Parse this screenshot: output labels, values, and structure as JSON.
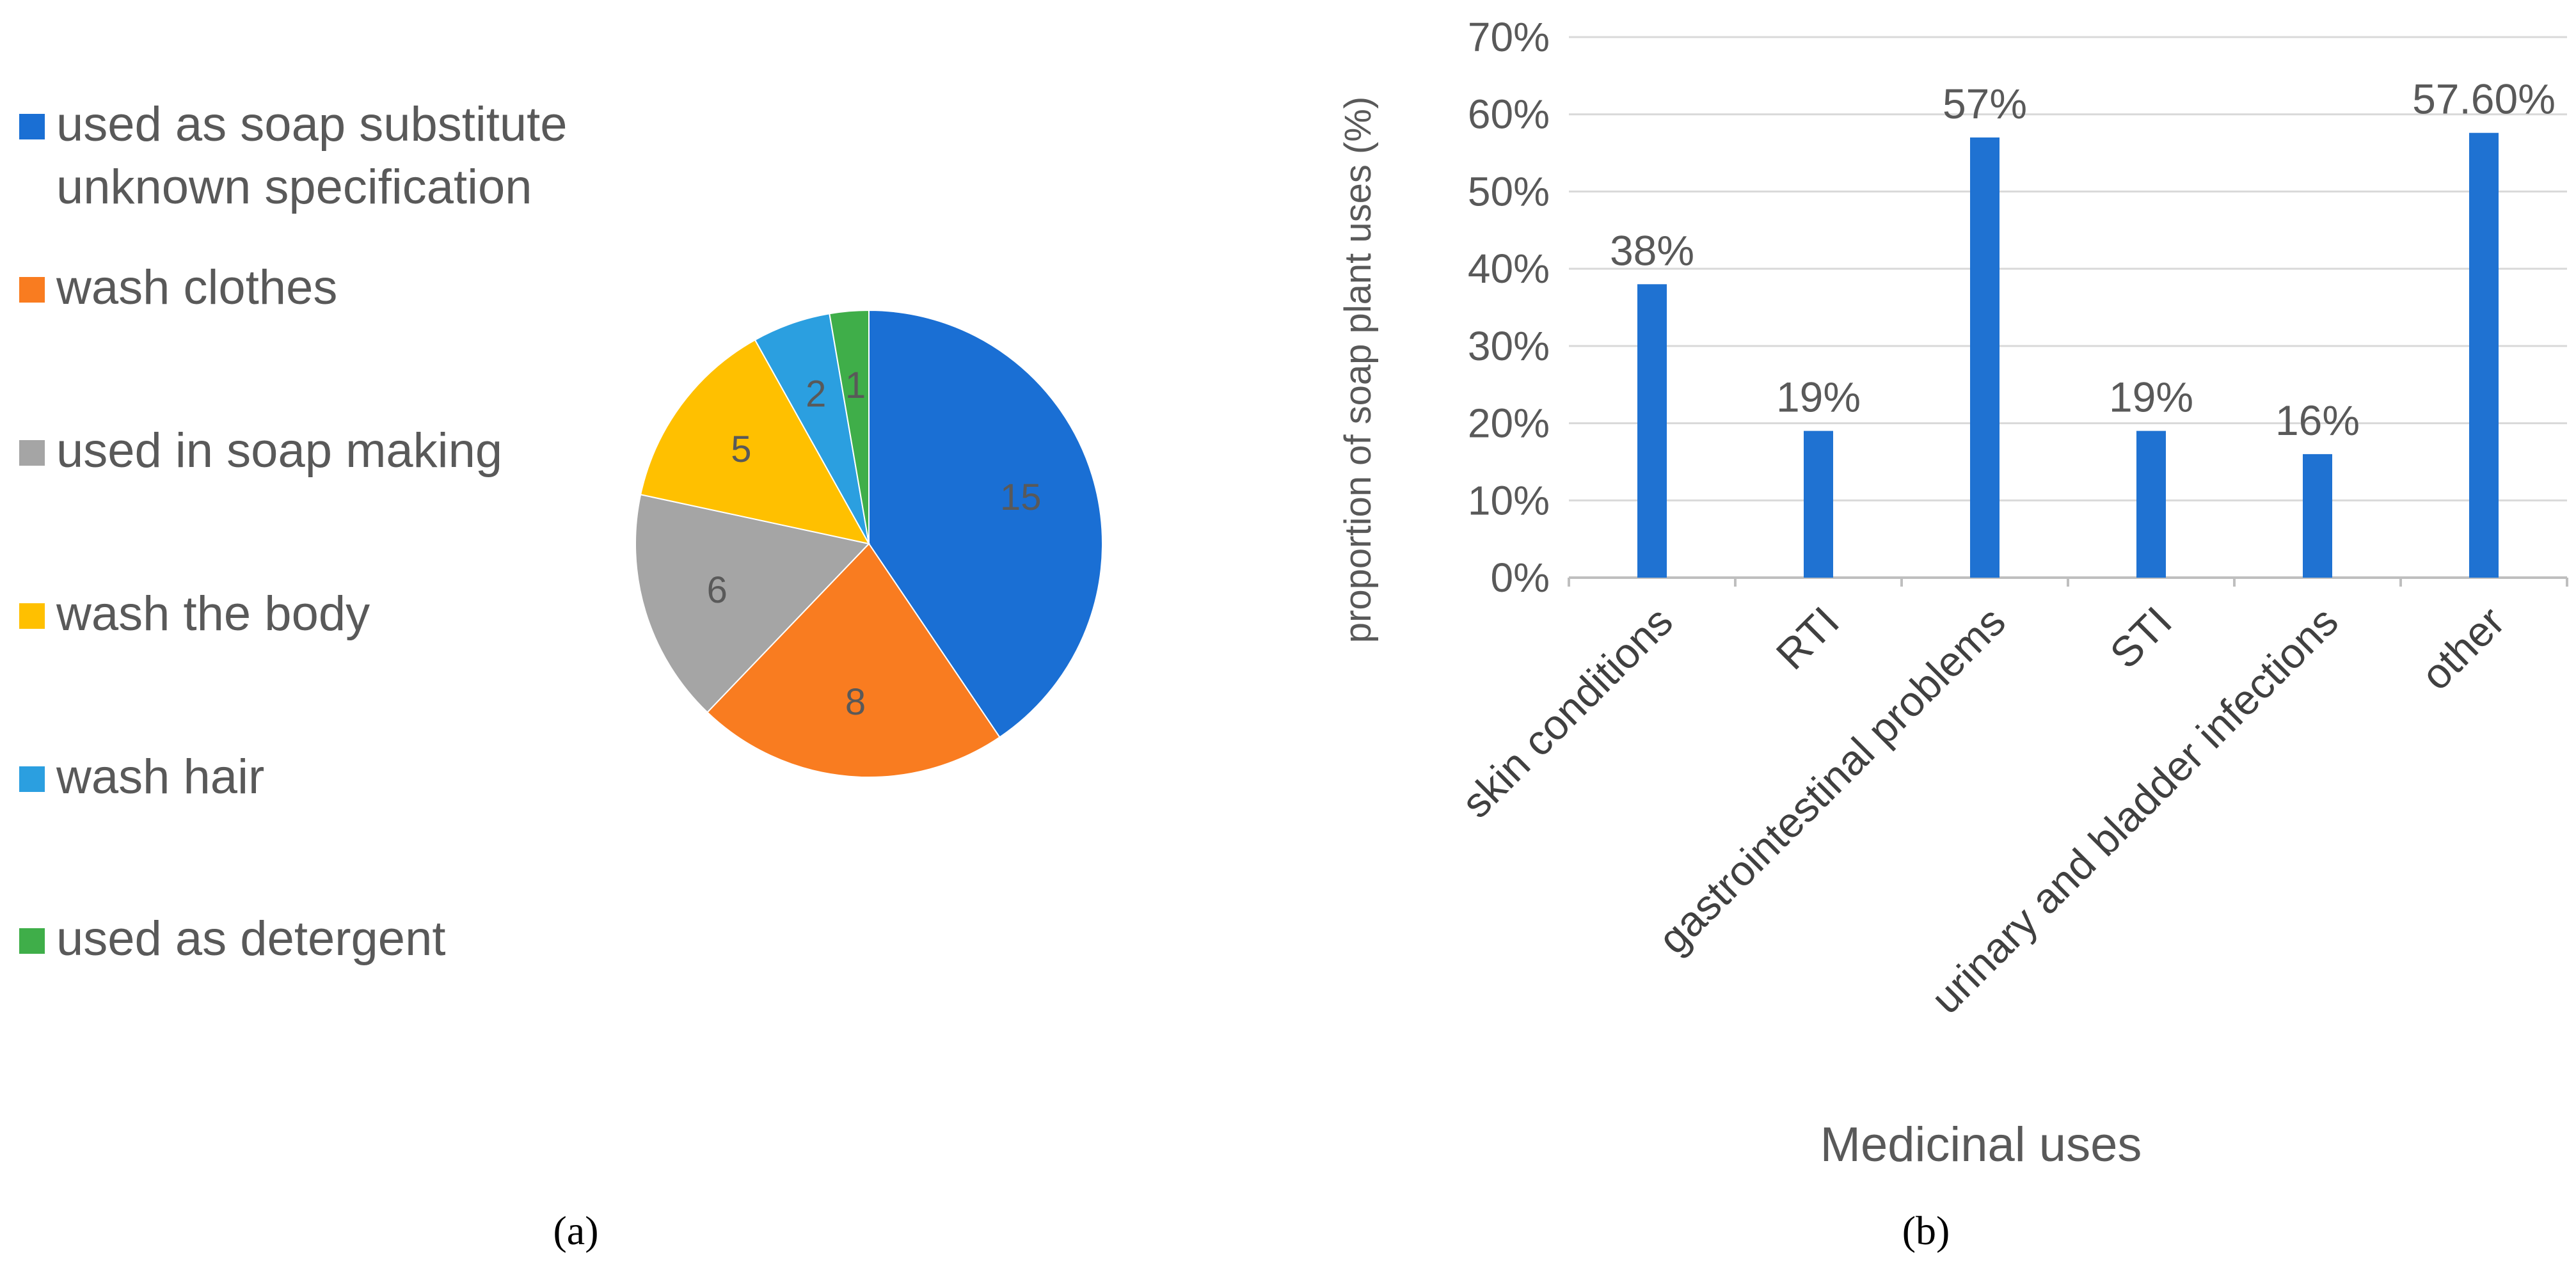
{
  "chart_data": [
    {
      "type": "pie",
      "legend_position": "left",
      "slices": [
        {
          "label": [
            "used as soap substitute",
            "unknown specification"
          ],
          "value": 15,
          "color": "#1a6fd4"
        },
        {
          "label": [
            "wash clothes"
          ],
          "value": 8,
          "color": "#f97c20"
        },
        {
          "label": [
            "used in soap making"
          ],
          "value": 6,
          "color": "#a5a5a5"
        },
        {
          "label": [
            "wash the body"
          ],
          "value": 5,
          "color": "#ffc000"
        },
        {
          "label": [
            "wash hair"
          ],
          "value": 2,
          "color": "#2b9fe0"
        },
        {
          "label": [
            "used as detergent"
          ],
          "value": 1,
          "color": "#3fae49"
        }
      ],
      "caption": "(a)"
    },
    {
      "type": "bar",
      "categories": [
        "skin conditions",
        "RTI",
        "gastrointestinal problems",
        "STI",
        "urinary and bladder infections",
        "other"
      ],
      "values": [
        38,
        19,
        57,
        19,
        16,
        57.6
      ],
      "data_labels": [
        "38%",
        "19%",
        "57%",
        "19%",
        "16%",
        "57.60%"
      ],
      "xlabel": "Medicinal uses",
      "ylabel": "proportion of soap plant uses (%)",
      "ylim": [
        0,
        70
      ],
      "yticks": [
        0,
        10,
        20,
        30,
        40,
        50,
        60,
        70
      ],
      "ytick_labels": [
        "0%",
        "10%",
        "20%",
        "30%",
        "40%",
        "50%",
        "60%",
        "70%"
      ],
      "grid": true,
      "bar_color": "#1f72d2",
      "caption": "(b)"
    }
  ]
}
